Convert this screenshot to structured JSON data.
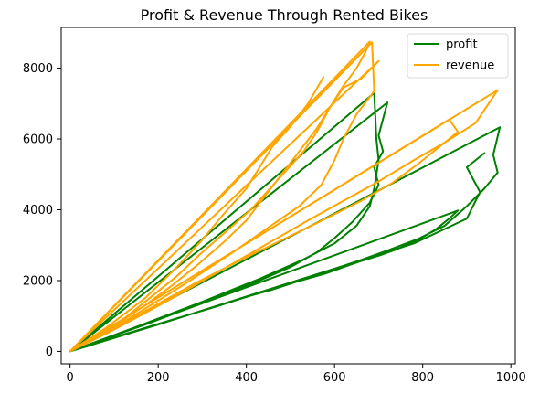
{
  "chart_data": {
    "type": "line",
    "title": "Profit & Revenue Through Rented Bikes",
    "xlabel": "",
    "ylabel": "",
    "xlim": [
      -20,
      1010
    ],
    "ylim": [
      -350,
      9150
    ],
    "xticks": [
      0,
      200,
      400,
      600,
      800,
      1000
    ],
    "yticks": [
      0,
      2000,
      4000,
      6000,
      8000
    ],
    "grid": false,
    "legend_position": "top-right",
    "series": [
      {
        "name": "profit",
        "color": "#008000",
        "points": [
          [
            0,
            0
          ],
          [
            40,
            150
          ],
          [
            100,
            390
          ],
          [
            180,
            700
          ],
          [
            260,
            1000
          ],
          [
            330,
            1260
          ],
          [
            400,
            1540
          ],
          [
            460,
            1750
          ],
          [
            520,
            1990
          ],
          [
            580,
            2200
          ],
          [
            620,
            2380
          ],
          [
            660,
            2550
          ],
          [
            700,
            2700
          ],
          [
            740,
            2880
          ],
          [
            790,
            3150
          ],
          [
            830,
            3450
          ],
          [
            860,
            3750
          ],
          [
            880,
            3980
          ],
          [
            0,
            0
          ],
          [
            120,
            470
          ],
          [
            240,
            920
          ],
          [
            360,
            1380
          ],
          [
            480,
            1850
          ],
          [
            580,
            2250
          ],
          [
            660,
            2580
          ],
          [
            720,
            2850
          ],
          [
            790,
            3180
          ],
          [
            850,
            3550
          ],
          [
            900,
            4100
          ],
          [
            940,
            4600
          ],
          [
            970,
            5050
          ],
          [
            960,
            5550
          ],
          [
            975,
            6330
          ],
          [
            0,
            0
          ],
          [
            90,
            400
          ],
          [
            180,
            800
          ],
          [
            260,
            1180
          ],
          [
            340,
            1560
          ],
          [
            420,
            1950
          ],
          [
            500,
            2380
          ],
          [
            560,
            2800
          ],
          [
            600,
            3200
          ],
          [
            640,
            3650
          ],
          [
            680,
            4200
          ],
          [
            700,
            4700
          ],
          [
            690,
            5200
          ],
          [
            710,
            5650
          ],
          [
            700,
            6100
          ],
          [
            720,
            7030
          ],
          [
            0,
            0
          ],
          [
            150,
            690
          ],
          [
            300,
            1400
          ],
          [
            430,
            2050
          ],
          [
            530,
            2600
          ],
          [
            600,
            3050
          ],
          [
            650,
            3550
          ],
          [
            680,
            4100
          ],
          [
            690,
            4600
          ],
          [
            700,
            5400
          ],
          [
            695,
            6000
          ],
          [
            690,
            7300
          ],
          [
            0,
            0
          ],
          [
            200,
            760
          ],
          [
            380,
            1470
          ],
          [
            540,
            2100
          ],
          [
            680,
            2650
          ],
          [
            780,
            3050
          ],
          [
            840,
            3400
          ],
          [
            900,
            3750
          ],
          [
            930,
            4500
          ],
          [
            900,
            5200
          ],
          [
            940,
            5600
          ]
        ]
      },
      {
        "name": "revenue",
        "color": "#FFA500",
        "points": [
          [
            0,
            0
          ],
          [
            60,
            400
          ],
          [
            120,
            900
          ],
          [
            180,
            1500
          ],
          [
            240,
            2100
          ],
          [
            300,
            2800
          ],
          [
            360,
            3450
          ],
          [
            410,
            4000
          ],
          [
            450,
            4550
          ],
          [
            490,
            5100
          ],
          [
            530,
            5650
          ],
          [
            560,
            6200
          ],
          [
            590,
            6900
          ],
          [
            620,
            7500
          ],
          [
            650,
            8000
          ],
          [
            670,
            8450
          ],
          [
            680,
            8750
          ],
          [
            0,
            0
          ],
          [
            90,
            550
          ],
          [
            180,
            1150
          ],
          [
            260,
            1700
          ],
          [
            330,
            2200
          ],
          [
            400,
            2700
          ],
          [
            470,
            3200
          ],
          [
            540,
            3700
          ],
          [
            620,
            4250
          ],
          [
            700,
            4800
          ],
          [
            780,
            5400
          ],
          [
            850,
            5900
          ],
          [
            920,
            6450
          ],
          [
            970,
            7380
          ],
          [
            0,
            0
          ],
          [
            50,
            350
          ],
          [
            110,
            800
          ],
          [
            170,
            1300
          ],
          [
            230,
            1850
          ],
          [
            290,
            2450
          ],
          [
            350,
            3100
          ],
          [
            400,
            3700
          ],
          [
            440,
            4350
          ],
          [
            480,
            5000
          ],
          [
            520,
            5650
          ],
          [
            560,
            6300
          ],
          [
            590,
            6900
          ],
          [
            620,
            7450
          ],
          [
            660,
            7700
          ],
          [
            700,
            8200
          ],
          [
            0,
            0
          ],
          [
            130,
            900
          ],
          [
            260,
            1900
          ],
          [
            370,
            2800
          ],
          [
            450,
            3500
          ],
          [
            520,
            4100
          ],
          [
            570,
            4700
          ],
          [
            600,
            5400
          ],
          [
            620,
            6000
          ],
          [
            650,
            6700
          ],
          [
            690,
            7350
          ],
          [
            685,
            8730
          ],
          [
            0,
            0
          ],
          [
            150,
            1000
          ],
          [
            280,
            1900
          ],
          [
            390,
            2600
          ],
          [
            490,
            3200
          ],
          [
            580,
            3750
          ],
          [
            660,
            4250
          ],
          [
            730,
            4750
          ],
          [
            790,
            5300
          ],
          [
            840,
            5800
          ],
          [
            880,
            6200
          ],
          [
            860,
            6550
          ],
          [
            0,
            0
          ],
          [
            80,
            650
          ],
          [
            170,
            1500
          ],
          [
            240,
            2350
          ],
          [
            300,
            3150
          ],
          [
            350,
            3900
          ],
          [
            400,
            4600
          ],
          [
            430,
            5200
          ],
          [
            460,
            5800
          ],
          [
            500,
            6350
          ],
          [
            540,
            7000
          ],
          [
            575,
            7750
          ]
        ]
      }
    ]
  }
}
